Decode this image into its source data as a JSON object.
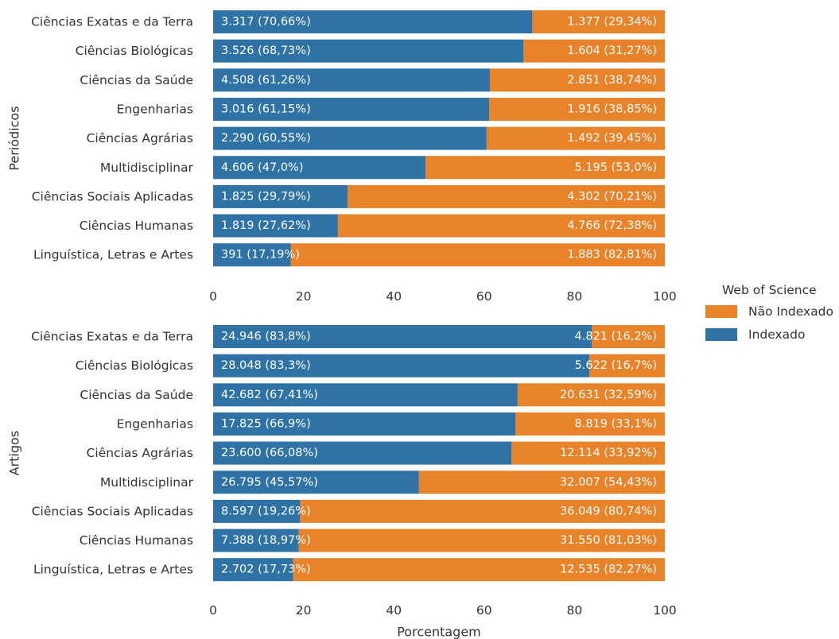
{
  "chart_data": {
    "type": "bar",
    "orientation": "horizontal",
    "stacked": true,
    "xlabel": "Porcentagem",
    "xlim": [
      0,
      100
    ],
    "xticks": [
      "0",
      "20",
      "40",
      "60",
      "80",
      "100"
    ],
    "grid": false,
    "legend": {
      "title": "Web of Science",
      "position": "right",
      "items": [
        {
          "name": "Não Indexado",
          "color": "#E8832A"
        },
        {
          "name": "Indexado",
          "color": "#2E72A6"
        }
      ]
    },
    "panels": [
      {
        "ylabel": "Periódicos",
        "categories": [
          "Ciências Exatas e da Terra",
          "Ciências Biológicas",
          "Ciências da Saúde",
          "Engenharias",
          "Ciências Agrárias",
          "Multidisciplinar",
          "Ciências Sociais Aplicadas",
          "Ciências Humanas",
          "Linguística, Letras e Artes"
        ],
        "series": [
          {
            "name": "Indexado",
            "values": [
              70.66,
              68.73,
              61.26,
              61.15,
              60.55,
              47.0,
              29.79,
              27.62,
              17.19
            ],
            "labels": [
              "3.317 (70,66%)",
              "3.526 (68,73%)",
              "4.508 (61,26%)",
              "3.016 (61,15%)",
              "2.290 (60,55%)",
              "4.606 (47,0%)",
              "1.825 (29,79%)",
              "1.819 (27,62%)",
              "391 (17,19%)"
            ]
          },
          {
            "name": "Não Indexado",
            "values": [
              29.34,
              31.27,
              38.74,
              38.85,
              39.45,
              53.0,
              70.21,
              72.38,
              82.81
            ],
            "labels": [
              "1.377 (29,34%)",
              "1.604 (31,27%)",
              "2.851 (38,74%)",
              "1.916 (38,85%)",
              "1.492 (39,45%)",
              "5.195 (53,0%)",
              "4.302 (70,21%)",
              "4.766 (72,38%)",
              "1.883 (82,81%)"
            ]
          }
        ]
      },
      {
        "ylabel": "Artigos",
        "categories": [
          "Ciências Exatas e da Terra",
          "Ciências Biológicas",
          "Ciências da Saúde",
          "Engenharias",
          "Ciências Agrárias",
          "Multidisciplinar",
          "Ciências Sociais Aplicadas",
          "Ciências Humanas",
          "Linguística, Letras e Artes"
        ],
        "series": [
          {
            "name": "Indexado",
            "values": [
              83.8,
              83.3,
              67.41,
              66.9,
              66.08,
              45.57,
              19.26,
              18.97,
              17.73
            ],
            "labels": [
              "24.946 (83,8%)",
              "28.048 (83,3%)",
              "42.682 (67,41%)",
              "17.825 (66,9%)",
              "23.600 (66,08%)",
              "26.795 (45,57%)",
              "8.597 (19,26%)",
              "7.388 (18,97%)",
              "2.702 (17,73%)"
            ]
          },
          {
            "name": "Não Indexado",
            "values": [
              16.2,
              16.7,
              32.59,
              33.1,
              33.92,
              54.43,
              80.74,
              81.03,
              82.27
            ],
            "labels": [
              "4.821 (16,2%)",
              "5.622 (16,7%)",
              "20.631 (32,59%)",
              "8.819 (33,1%)",
              "12.114 (33,92%)",
              "32.007 (54,43%)",
              "36.049 (80,74%)",
              "31.550 (81,03%)",
              "12.535 (82,27%)"
            ]
          }
        ]
      }
    ]
  }
}
